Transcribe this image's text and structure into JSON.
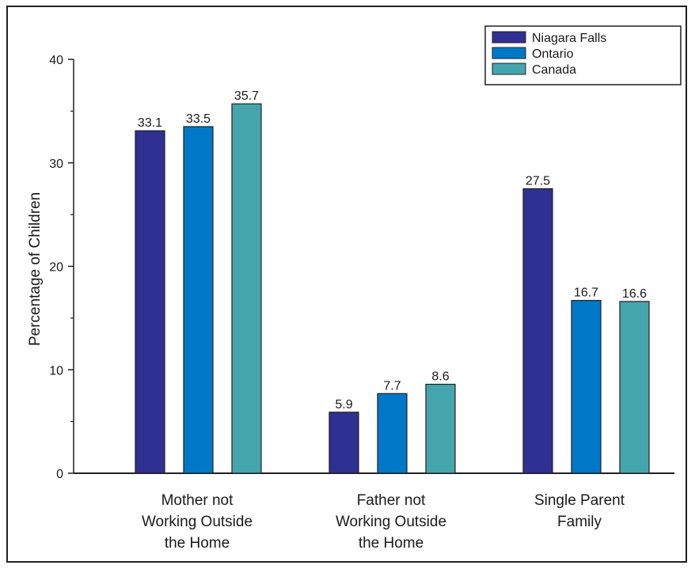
{
  "chart_data": {
    "type": "bar",
    "title": "",
    "xlabel": "",
    "ylabel": "Percentage of Children",
    "ylim": [
      0,
      40
    ],
    "yticks": [
      "0",
      "10",
      "20",
      "30",
      "40"
    ],
    "categories": [
      [
        "Mother not",
        "Working Outside",
        "the Home"
      ],
      [
        "Father not",
        "Working Outside",
        "the Home"
      ],
      [
        "Single Parent",
        "Family"
      ]
    ],
    "series": [
      {
        "name": "Niagara Falls",
        "color": "#2e3192",
        "values": [
          33.1,
          5.9,
          27.5
        ],
        "labels": [
          "33.1",
          "5.9",
          "27.5"
        ]
      },
      {
        "name": "Ontario",
        "color": "#0078c8",
        "values": [
          33.5,
          7.7,
          16.7
        ],
        "labels": [
          "33.5",
          "7.7",
          "16.7"
        ]
      },
      {
        "name": "Canada",
        "color": "#45a5ad",
        "values": [
          35.7,
          8.6,
          16.6
        ],
        "labels": [
          "35.7",
          "8.6",
          "16.6"
        ]
      }
    ],
    "legend_position": "top-right",
    "grid": false
  }
}
